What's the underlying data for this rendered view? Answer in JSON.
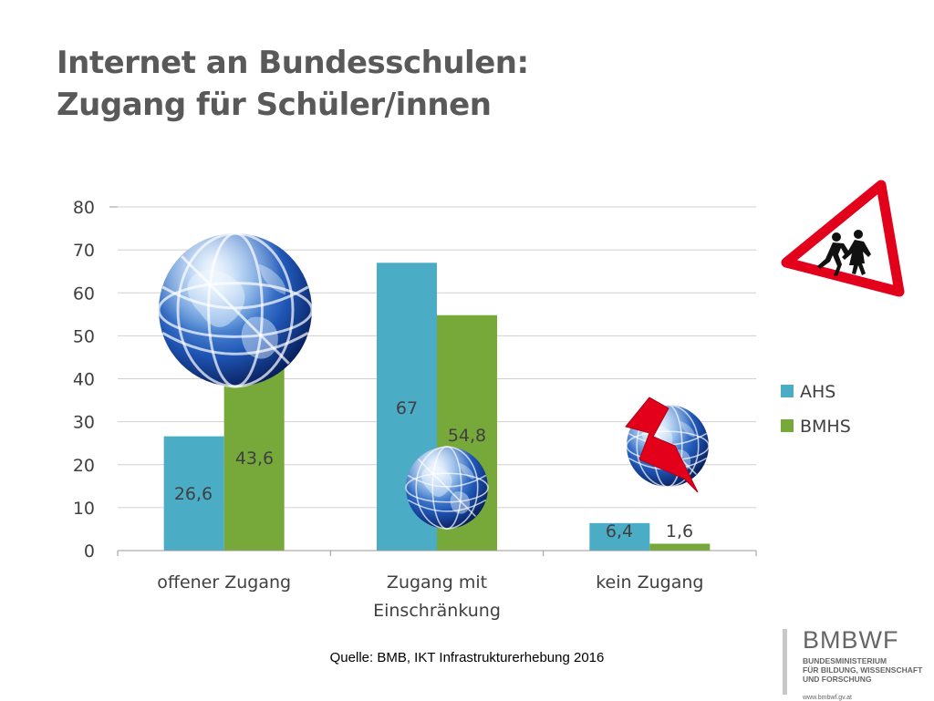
{
  "title": {
    "line1": "Internet an Bundesschulen:",
    "line2": "Zugang für Schüler/innen"
  },
  "chart_data": {
    "type": "bar",
    "categories": [
      "offener Zugang",
      "Zugang mit Einschränkung",
      "kein Zugang"
    ],
    "category_lines": [
      [
        "offener Zugang"
      ],
      [
        "Zugang mit",
        "Einschränkung"
      ],
      [
        "kein Zugang"
      ]
    ],
    "series": [
      {
        "name": "AHS",
        "values": [
          26.6,
          67,
          6.4
        ],
        "labels": [
          "26,6",
          "67",
          "6,4"
        ],
        "color": "#4BACC6"
      },
      {
        "name": "BMHS",
        "values": [
          43.6,
          54.8,
          1.6
        ],
        "labels": [
          "43,6",
          "54,8",
          "1,6"
        ],
        "color": "#77A83A"
      }
    ],
    "ylim": [
      0,
      80
    ],
    "yticks": [
      "0",
      "10",
      "20",
      "30",
      "40",
      "50",
      "60",
      "70",
      "80"
    ],
    "grid": true,
    "legend_position": "right"
  },
  "source": "Quelle: BMB, IKT Infrastrukturerhebung 2016",
  "logo": {
    "name": "BMBWF",
    "sub": [
      "BUNDESMINISTERIUM",
      "FÜR BILDUNG, WISSENSCHAFT",
      "UND FORSCHUNG"
    ],
    "url": "www.bmbwf.gv.at"
  },
  "icons": [
    "globe-icon",
    "globe-icon",
    "globe-icon",
    "lightning-bolt-icon",
    "school-children-warning-sign-icon"
  ],
  "colors": {
    "ahs": "#4BACC6",
    "bmhs": "#77A83A",
    "warning_red": "#E3001B",
    "title": "#595959"
  }
}
